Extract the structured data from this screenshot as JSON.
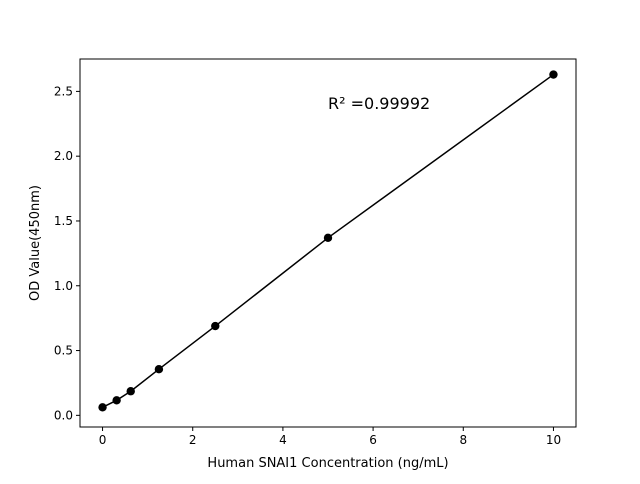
{
  "chart_data": {
    "type": "line",
    "title": "",
    "xlabel": "Human SNAI1 Concentration (ng/mL)",
    "ylabel": "OD Value(450nm)",
    "xlim": [
      -0.5,
      10.5
    ],
    "ylim": [
      -0.09,
      2.75
    ],
    "xticks": [
      0,
      2,
      4,
      6,
      8,
      10
    ],
    "yticks": [
      0.0,
      0.5,
      1.0,
      1.5,
      2.0,
      2.5
    ],
    "xtick_labels": [
      "0",
      "2",
      "4",
      "6",
      "8",
      "10"
    ],
    "ytick_labels": [
      "0.0",
      "0.5",
      "1.0",
      "1.5",
      "2.0",
      "2.5"
    ],
    "grid": false,
    "series": [
      {
        "x": [
          0,
          0.3125,
          0.625,
          1.25,
          2.5,
          5,
          10
        ],
        "y": [
          0.062,
          0.116,
          0.186,
          0.356,
          0.689,
          1.37,
          2.63
        ],
        "color": "#000000",
        "marker": "circle"
      }
    ],
    "annotation": "R² =0.99992"
  }
}
